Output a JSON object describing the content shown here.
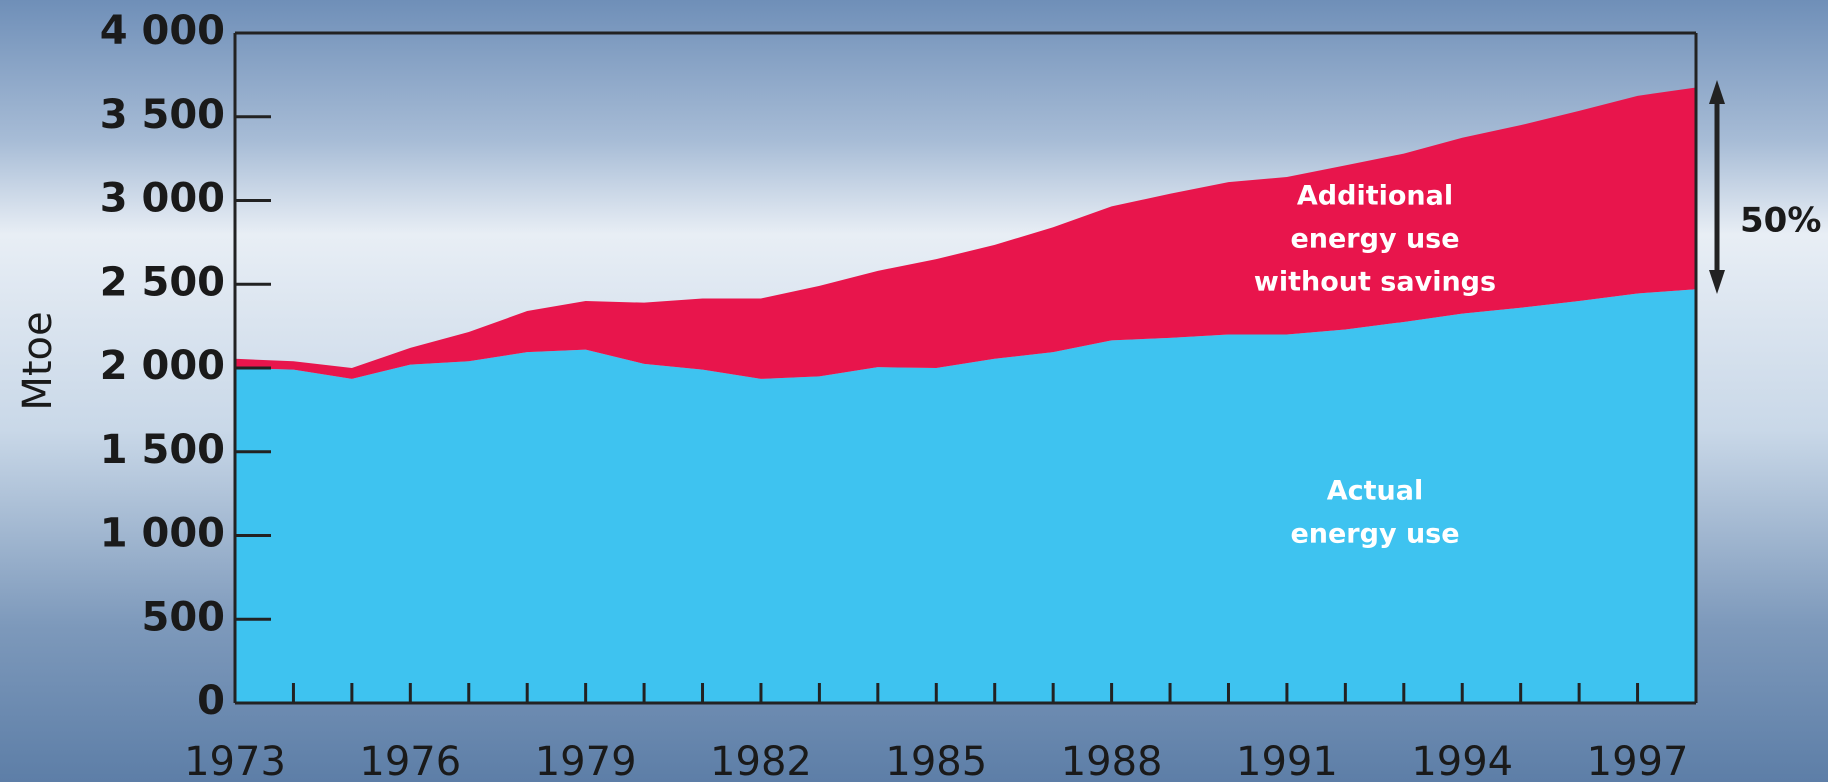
{
  "chart_data": {
    "type": "stacked_area",
    "y_label": "Mtoe",
    "x": [
      1973,
      1974,
      1975,
      1976,
      1977,
      1978,
      1979,
      1980,
      1981,
      1982,
      1983,
      1984,
      1985,
      1986,
      1987,
      1988,
      1989,
      1990,
      1991,
      1992,
      1993,
      1994,
      1995,
      1996,
      1997,
      1998
    ],
    "series": [
      {
        "name_lines": [
          "Actual",
          "energy use"
        ],
        "color": "#3ec3f0",
        "values": [
          2000,
          1990,
          1935,
          2020,
          2040,
          2095,
          2110,
          2025,
          1990,
          1935,
          1950,
          2005,
          2000,
          2055,
          2095,
          2165,
          2180,
          2200,
          2200,
          2230,
          2275,
          2325,
          2360,
          2400,
          2445,
          2470
        ]
      },
      {
        "name_lines": [
          "Additional",
          "energy use",
          "without savings"
        ],
        "color": "#e8154c",
        "values": [
          55,
          50,
          65,
          100,
          175,
          245,
          290,
          365,
          425,
          480,
          540,
          575,
          650,
          680,
          745,
          800,
          860,
          910,
          940,
          980,
          1005,
          1050,
          1090,
          1135,
          1180,
          1205
        ]
      }
    ],
    "xlim": [
      1973,
      1998
    ],
    "xticks": [
      1973,
      1976,
      1979,
      1982,
      1985,
      1988,
      1991,
      1994,
      1997
    ],
    "ylim": [
      0,
      4000
    ],
    "yticks": [
      0,
      500,
      {
        "value": 1000,
        "label": "1 000"
      },
      {
        "value": 1500,
        "label": "1 500"
      },
      {
        "value": 2000,
        "label": "2 000"
      },
      {
        "value": 2500,
        "label": "2 500"
      },
      {
        "value": 3000,
        "label": "3 000"
      },
      {
        "value": 3500,
        "label": "3 500"
      },
      {
        "value": 4000,
        "label": "4 000"
      }
    ],
    "annotation": "50%"
  }
}
